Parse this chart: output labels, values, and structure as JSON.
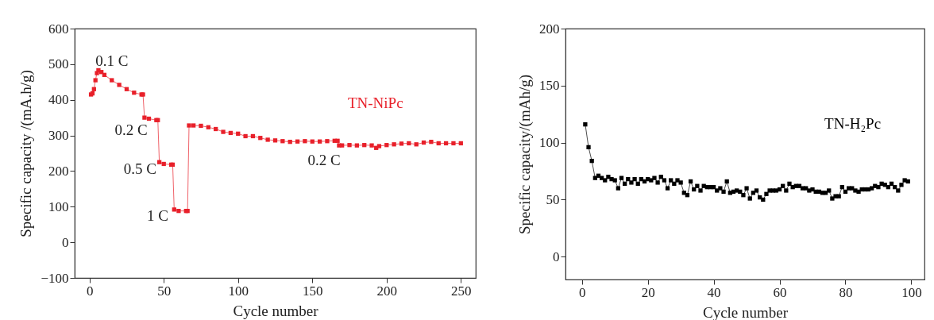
{
  "chart_data": [
    {
      "type": "line",
      "xlabel": "Cycle number",
      "ylabel": "Specific capacity /(mA.h/g)",
      "xlim": [
        -10,
        260
      ],
      "ylim": [
        -100,
        600
      ],
      "xticks": [
        0,
        50,
        100,
        150,
        200,
        250
      ],
      "yticks": [
        -100,
        0,
        100,
        200,
        300,
        400,
        500,
        600
      ],
      "marker": "square",
      "line_style": "solid",
      "legend": false,
      "grid": false,
      "annotations": [
        "0.1 C",
        "0.2 C",
        "0.5 C",
        "1 C",
        "0.2 C"
      ],
      "series": [
        {
          "name": "TN-NiPc",
          "color": "#e8202a",
          "x": [
            1,
            2,
            3,
            4,
            5,
            6,
            8,
            10,
            15,
            20,
            25,
            30,
            35,
            36,
            37,
            40,
            45,
            46,
            47,
            50,
            55,
            56,
            57,
            60,
            65,
            66,
            67,
            70,
            75,
            80,
            85,
            90,
            95,
            100,
            105,
            110,
            115,
            120,
            125,
            130,
            135,
            140,
            145,
            150,
            155,
            160,
            165,
            167,
            168,
            170,
            175,
            180,
            185,
            190,
            193,
            195,
            200,
            205,
            210,
            215,
            220,
            225,
            230,
            235,
            240,
            245,
            250
          ],
          "values": [
            415,
            418,
            430,
            455,
            475,
            483,
            478,
            470,
            455,
            442,
            430,
            420,
            415,
            415,
            350,
            347,
            343,
            343,
            225,
            220,
            218,
            218,
            92,
            88,
            88,
            88,
            328,
            328,
            327,
            323,
            318,
            310,
            307,
            305,
            298,
            298,
            293,
            288,
            286,
            284,
            282,
            283,
            284,
            283,
            283,
            284,
            285,
            285,
            272,
            272,
            273,
            272,
            273,
            272,
            265,
            270,
            273,
            275,
            277,
            278,
            275,
            280,
            282,
            278,
            278,
            278,
            278
          ]
        }
      ]
    },
    {
      "type": "line",
      "xlabel": "Cycle number",
      "ylabel": "Specific capacity/(mAh/g)",
      "xlim": [
        -5,
        104
      ],
      "ylim": [
        -20,
        200
      ],
      "xticks": [
        0,
        20,
        40,
        60,
        80,
        100
      ],
      "yticks": [
        0,
        50,
        100,
        150,
        200
      ],
      "marker": "square",
      "line_style": "solid",
      "legend": false,
      "grid": false,
      "series": [
        {
          "name": "TN-H₂Pc",
          "color": "#000000",
          "x": [
            1,
            2,
            3,
            4,
            5,
            6,
            7,
            8,
            9,
            10,
            11,
            12,
            13,
            14,
            15,
            16,
            17,
            18,
            19,
            20,
            21,
            22,
            23,
            24,
            25,
            26,
            27,
            28,
            29,
            30,
            31,
            32,
            33,
            34,
            35,
            36,
            37,
            38,
            39,
            40,
            41,
            42,
            43,
            44,
            45,
            46,
            47,
            48,
            49,
            50,
            51,
            52,
            53,
            54,
            55,
            56,
            57,
            58,
            59,
            60,
            61,
            62,
            63,
            64,
            65,
            66,
            67,
            68,
            69,
            70,
            71,
            72,
            73,
            74,
            75,
            76,
            77,
            78,
            79,
            80,
            81,
            82,
            83,
            84,
            85,
            86,
            87,
            88,
            89,
            90,
            91,
            92,
            93,
            94,
            95,
            96,
            97,
            98,
            99
          ],
          "values": [
            116,
            96,
            84,
            69,
            71,
            69,
            67,
            70,
            68,
            67,
            60,
            69,
            64,
            68,
            65,
            68,
            64,
            68,
            66,
            68,
            67,
            69,
            65,
            70,
            67,
            60,
            67,
            64,
            67,
            65,
            56,
            54,
            66,
            59,
            62,
            58,
            62,
            61,
            61,
            61,
            58,
            60,
            57,
            66,
            56,
            57,
            58,
            57,
            54,
            60,
            51,
            56,
            58,
            52,
            50,
            55,
            58,
            58,
            58,
            59,
            62,
            58,
            64,
            61,
            62,
            62,
            60,
            60,
            58,
            59,
            57,
            57,
            56,
            56,
            58,
            51,
            53,
            53,
            61,
            57,
            60,
            60,
            58,
            57,
            59,
            59,
            59,
            60,
            62,
            61,
            64,
            63,
            61,
            64,
            61,
            58,
            63,
            67,
            66
          ]
        }
      ]
    }
  ]
}
